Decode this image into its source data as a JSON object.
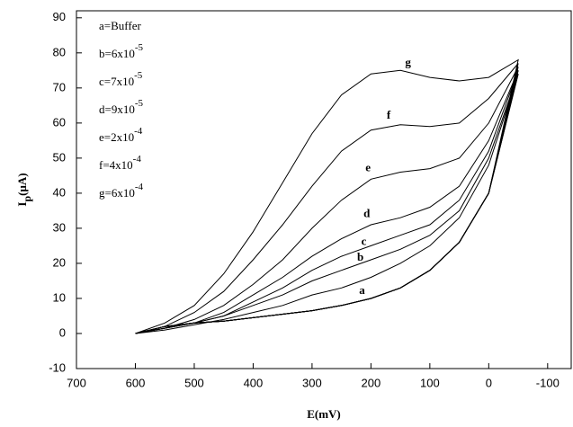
{
  "chart_data": {
    "type": "line",
    "xlabel": "E(mV)",
    "ylabel": {
      "main": "I",
      "sub": "p",
      "unit": "(μA)"
    },
    "xlim": [
      700,
      -140
    ],
    "ylim": [
      -10,
      92
    ],
    "xticks": [
      700,
      600,
      500,
      400,
      300,
      200,
      100,
      0,
      -100
    ],
    "yticks": [
      -10,
      0,
      10,
      20,
      30,
      40,
      50,
      60,
      70,
      80,
      90
    ],
    "legend": [
      {
        "text": "a=Buffer"
      },
      {
        "text": "b=6x10",
        "sup": "-5"
      },
      {
        "text": "c=7x10",
        "sup": "-5"
      },
      {
        "text": "d=9x10",
        "sup": "-5"
      },
      {
        "text": "e=2x10",
        "sup": "-4"
      },
      {
        "text": "f=4x10",
        "sup": "-4"
      },
      {
        "text": "g=6x10",
        "sup": "-4"
      }
    ],
    "series": [
      {
        "name": "a",
        "color": "#000000",
        "x": [
          600,
          550,
          500,
          450,
          400,
          350,
          300,
          250,
          200,
          150,
          100,
          50,
          0,
          -50,
          0,
          50,
          100,
          150,
          200,
          250,
          300,
          350,
          400,
          450,
          500,
          550,
          600
        ],
        "values": [
          0,
          2,
          3,
          3.5,
          4.5,
          5.5,
          6.5,
          8,
          10,
          13,
          18,
          26,
          40,
          74,
          48,
          33,
          25,
          20,
          16,
          13,
          11,
          8,
          6,
          4,
          2.5,
          1,
          0
        ]
      },
      {
        "name": "b",
        "color": "#000000",
        "x": [
          600,
          550,
          500,
          450,
          400,
          350,
          300,
          250,
          200,
          150,
          100,
          50,
          0,
          -50,
          0,
          50,
          100,
          150,
          200,
          250,
          300,
          350,
          400,
          450,
          500,
          550,
          600
        ],
        "values": [
          0,
          2,
          3,
          3.5,
          4.5,
          5.5,
          6.5,
          8,
          10,
          13,
          18,
          26,
          40,
          74,
          50,
          35,
          28,
          24,
          21,
          18,
          15,
          11,
          8,
          5,
          3,
          1.5,
          0
        ]
      },
      {
        "name": "c",
        "color": "#000000",
        "x": [
          600,
          550,
          500,
          450,
          400,
          350,
          300,
          250,
          200,
          150,
          100,
          50,
          0,
          -50,
          0,
          50,
          100,
          150,
          200,
          250,
          300,
          350,
          400,
          450,
          500,
          550,
          600
        ],
        "values": [
          0,
          2,
          3,
          3.5,
          4.5,
          5.5,
          6.5,
          8,
          10,
          13,
          18,
          26,
          40,
          75,
          52,
          38,
          31,
          28,
          25,
          22,
          18,
          13,
          9,
          5,
          3,
          1.5,
          0
        ]
      },
      {
        "name": "d",
        "color": "#000000",
        "x": [
          600,
          550,
          500,
          450,
          400,
          350,
          300,
          250,
          200,
          150,
          100,
          50,
          0,
          -50,
          0,
          50,
          100,
          150,
          200,
          250,
          300,
          350,
          400,
          450,
          500,
          550,
          600
        ],
        "values": [
          0,
          2,
          3,
          3.5,
          4.5,
          5.5,
          6.5,
          8,
          10,
          13,
          18,
          26,
          40,
          75,
          55,
          42,
          36,
          33,
          31,
          27,
          22,
          16,
          11,
          6,
          3,
          1.5,
          0
        ]
      },
      {
        "name": "e",
        "color": "#000000",
        "x": [
          600,
          550,
          500,
          450,
          400,
          350,
          300,
          250,
          200,
          150,
          100,
          50,
          0,
          -50,
          0,
          50,
          100,
          150,
          200,
          250,
          300,
          350,
          400,
          450,
          500,
          550,
          600
        ],
        "values": [
          0,
          2,
          3,
          3.5,
          4.5,
          5.5,
          6.5,
          8,
          10,
          13,
          18,
          26,
          40,
          76,
          60,
          50,
          47,
          46,
          44,
          38,
          30,
          21,
          14,
          8,
          4,
          1.5,
          0
        ]
      },
      {
        "name": "f",
        "color": "#000000",
        "x": [
          600,
          550,
          500,
          450,
          400,
          350,
          300,
          250,
          200,
          150,
          100,
          50,
          0,
          -50,
          0,
          50,
          100,
          150,
          200,
          250,
          300,
          350,
          400,
          450,
          500,
          550,
          600
        ],
        "values": [
          0,
          2,
          3,
          3.5,
          4.5,
          5.5,
          6.5,
          8,
          10,
          13,
          18,
          26,
          40,
          77,
          67,
          60,
          59,
          59.5,
          58,
          52,
          42,
          31,
          21,
          12,
          6,
          2,
          0
        ]
      },
      {
        "name": "g",
        "color": "#000000",
        "x": [
          600,
          550,
          500,
          450,
          400,
          350,
          300,
          250,
          200,
          150,
          100,
          50,
          0,
          -50,
          0,
          50,
          100,
          150,
          200,
          250,
          300,
          350,
          400,
          450,
          500,
          550,
          600
        ],
        "values": [
          0,
          2,
          3,
          3.5,
          4.5,
          5.5,
          6.5,
          8,
          10,
          13,
          18,
          26,
          40,
          78,
          73,
          72,
          73,
          75,
          74,
          68,
          57,
          43,
          29,
          17,
          8,
          3,
          0
        ]
      }
    ]
  }
}
